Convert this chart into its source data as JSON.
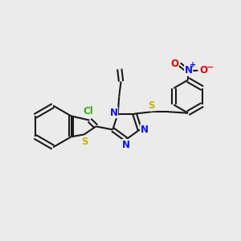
{
  "background_color": "#ebebeb",
  "bond_color": "#1a1a1a",
  "bond_width": 1.5,
  "figsize": [
    3.0,
    3.0
  ],
  "dpi": 100,
  "xlim": [
    0,
    10
  ],
  "ylim": [
    0,
    10
  ]
}
